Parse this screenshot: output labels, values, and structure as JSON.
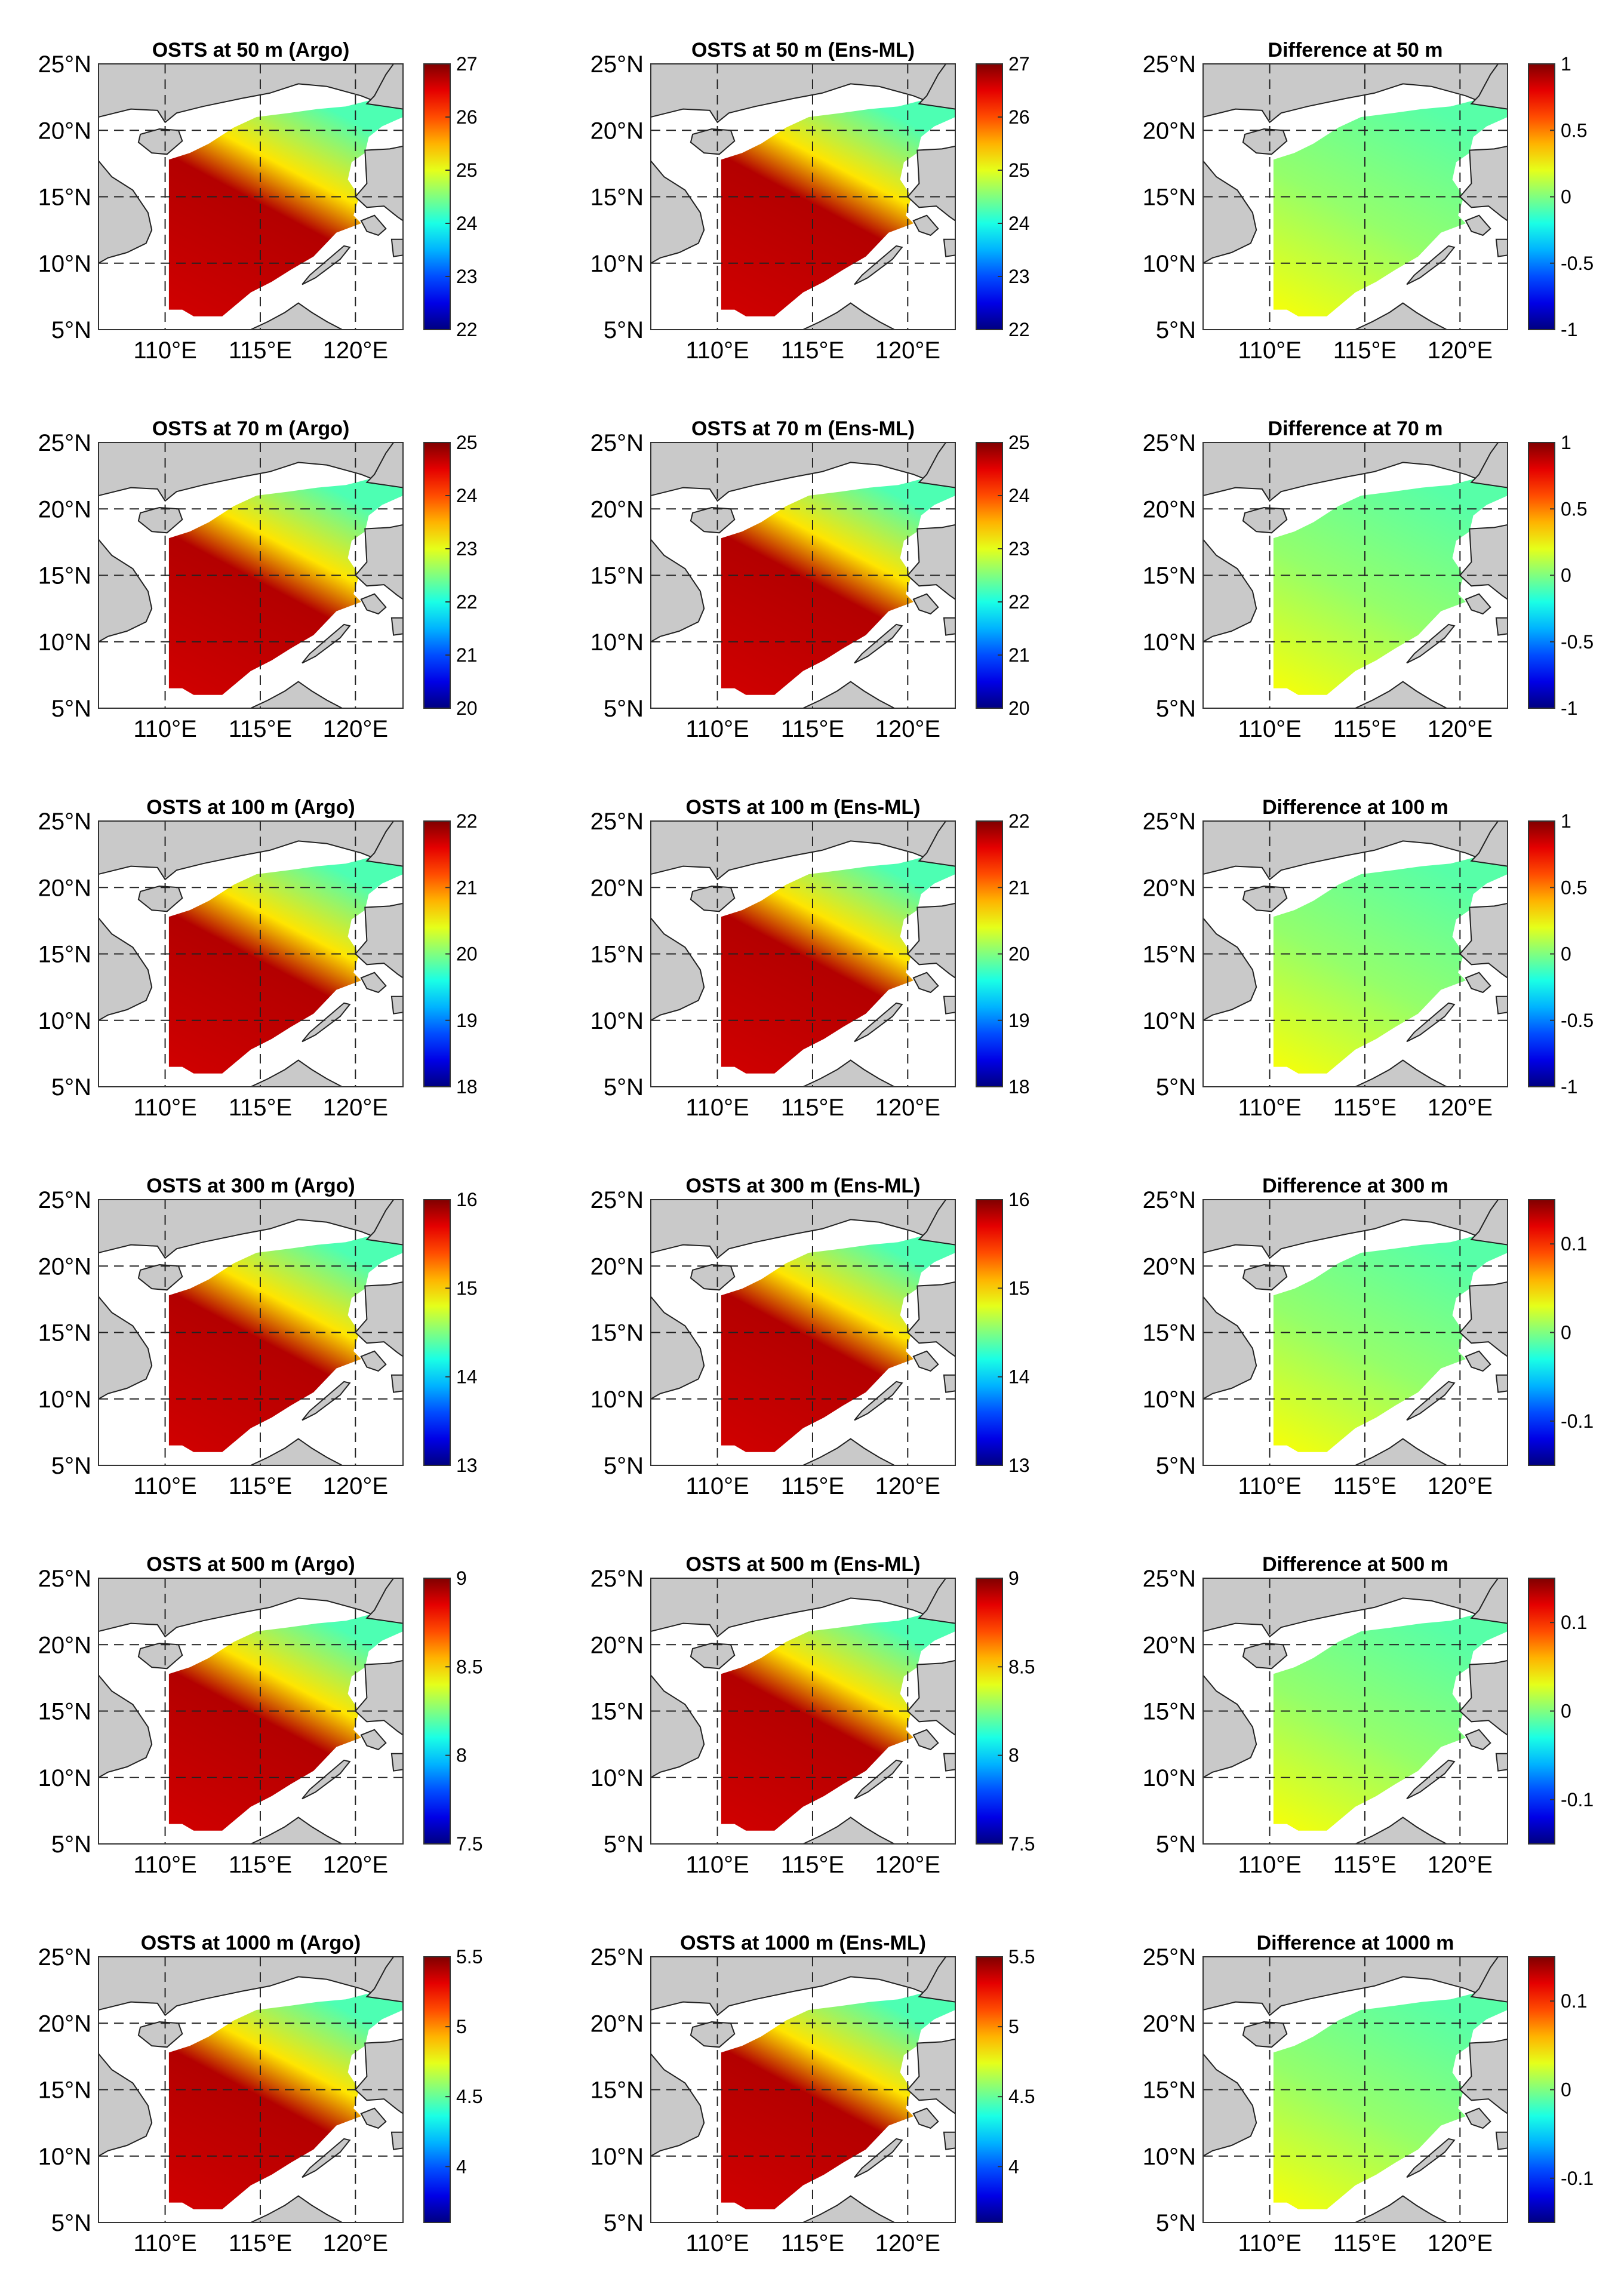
{
  "figure": {
    "description_type": "multi-panel contour maps",
    "row_labels": [
      "50 m",
      "70 m",
      "100 m",
      "300 m",
      "500 m",
      "1000 m"
    ],
    "lon_labels": [
      "110°E",
      "115°E",
      "120°E"
    ],
    "lat_labels": [
      "25°N",
      "20°N",
      "15°N",
      "10°N",
      "5°N"
    ],
    "extent": {
      "lon": [
        106.5,
        122.5
      ],
      "lat": [
        5,
        25
      ]
    },
    "colormap": "jet"
  },
  "panels": [
    {
      "title": "OSTS at 50 m (Argo)",
      "kind": "field",
      "vmin": 22,
      "vmax": 27,
      "ticks": [
        "27",
        "26",
        "25",
        "24",
        "23",
        "22"
      ]
    },
    {
      "title": "OSTS at 50 m (Ens-ML)",
      "kind": "field",
      "vmin": 22,
      "vmax": 27,
      "ticks": [
        "27",
        "26",
        "25",
        "24",
        "23",
        "22"
      ]
    },
    {
      "title": "Difference at 50 m",
      "kind": "diff",
      "vmin": -1,
      "vmax": 1,
      "ticks": [
        "1",
        "0.5",
        "0",
        "-0.5",
        "-1"
      ]
    },
    {
      "title": "OSTS at 70 m (Argo)",
      "kind": "field",
      "vmin": 20,
      "vmax": 25,
      "ticks": [
        "25",
        "24",
        "23",
        "22",
        "21",
        "20"
      ]
    },
    {
      "title": "OSTS at 70 m (Ens-ML)",
      "kind": "field",
      "vmin": 20,
      "vmax": 25,
      "ticks": [
        "25",
        "24",
        "23",
        "22",
        "21",
        "20"
      ]
    },
    {
      "title": "Difference at 70 m",
      "kind": "diff",
      "vmin": -1,
      "vmax": 1,
      "ticks": [
        "1",
        "0.5",
        "0",
        "-0.5",
        "-1"
      ]
    },
    {
      "title": "OSTS at 100 m (Argo)",
      "kind": "field",
      "vmin": 18,
      "vmax": 22,
      "ticks": [
        "22",
        "21",
        "20",
        "19",
        "18"
      ]
    },
    {
      "title": "OSTS at 100 m (Ens-ML)",
      "kind": "field",
      "vmin": 18,
      "vmax": 22,
      "ticks": [
        "22",
        "21",
        "20",
        "19",
        "18"
      ]
    },
    {
      "title": "Difference at 100 m",
      "kind": "diff",
      "vmin": -1,
      "vmax": 1,
      "ticks": [
        "1",
        "0.5",
        "0",
        "-0.5",
        "-1"
      ]
    },
    {
      "title": "OSTS at 300 m (Argo)",
      "kind": "field",
      "vmin": 13,
      "vmax": 16,
      "ticks": [
        "16",
        "15",
        "14",
        "13"
      ]
    },
    {
      "title": "OSTS at 300 m (Ens-ML)",
      "kind": "field",
      "vmin": 13,
      "vmax": 16,
      "ticks": [
        "16",
        "15",
        "14",
        "13"
      ]
    },
    {
      "title": "Difference at 300 m",
      "kind": "diff",
      "vmin": -0.15,
      "vmax": 0.15,
      "ticks": [
        "0.1",
        "0",
        "-0.1"
      ]
    },
    {
      "title": "OSTS at 500 m (Argo)",
      "kind": "field",
      "vmin": 7.5,
      "vmax": 9,
      "ticks": [
        "9",
        "8.5",
        "8",
        "7.5"
      ]
    },
    {
      "title": "OSTS at 500 m (Ens-ML)",
      "kind": "field",
      "vmin": 7.5,
      "vmax": 9,
      "ticks": [
        "9",
        "8.5",
        "8",
        "7.5"
      ]
    },
    {
      "title": "Difference at 500 m",
      "kind": "diff",
      "vmin": -0.15,
      "vmax": 0.15,
      "ticks": [
        "0.1",
        "0",
        "-0.1"
      ]
    },
    {
      "title": "OSTS at 1000 m (Argo)",
      "kind": "field",
      "vmin": 3.6,
      "vmax": 5.5,
      "ticks": [
        "5.5",
        "5",
        "4.5",
        "4"
      ]
    },
    {
      "title": "OSTS at 1000 m (Ens-ML)",
      "kind": "field",
      "vmin": 3.6,
      "vmax": 5.5,
      "ticks": [
        "5.5",
        "5",
        "4.5",
        "4"
      ]
    },
    {
      "title": "Difference at 1000 m",
      "kind": "diff",
      "vmin": -0.15,
      "vmax": 0.15,
      "ticks": [
        "0.1",
        "0",
        "-0.1"
      ]
    }
  ]
}
